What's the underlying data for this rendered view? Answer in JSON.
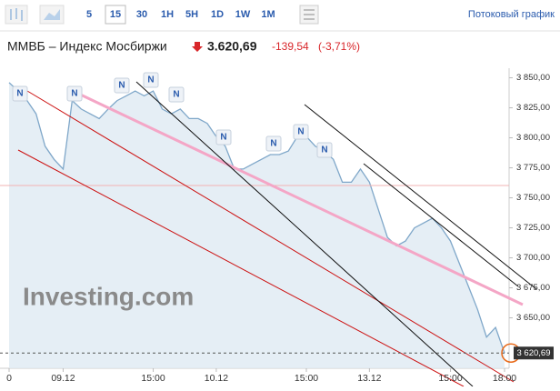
{
  "toolbar": {
    "periods": [
      "5",
      "15",
      "30",
      "1H",
      "5H",
      "1D",
      "1W",
      "1M"
    ],
    "active": "15",
    "stream_link": "Потоковый график"
  },
  "header": {
    "name": "ММВБ – Индекс Мосбиржи",
    "price": "3.620,69",
    "change": "-139,54",
    "change_pct": "(-3,71%)"
  },
  "watermark": "Investing.com",
  "news": [
    "N",
    "N",
    "N",
    "N",
    "N",
    "N",
    "N",
    "N",
    "N"
  ],
  "chart_data": {
    "type": "line",
    "categories": [
      "0",
      null,
      null,
      null,
      null,
      null,
      "09.12",
      null,
      null,
      null,
      null,
      null,
      null,
      null,
      null,
      null,
      "15:00",
      null,
      null,
      null,
      null,
      null,
      null,
      "10.12",
      null,
      null,
      null,
      null,
      null,
      null,
      null,
      null,
      null,
      "15:00",
      null,
      null,
      null,
      null,
      null,
      null,
      "13.12",
      null,
      null,
      null,
      null,
      null,
      null,
      null,
      null,
      "15:00",
      null,
      null,
      null,
      null,
      null,
      "18:00"
    ],
    "series": [
      {
        "name": "ММВБ",
        "color": "#7fa7c9",
        "values": [
          3846,
          3839,
          3831,
          3820,
          3793,
          3782,
          3774,
          3831,
          3824,
          3820,
          3816,
          3824,
          3831,
          3835,
          3839,
          3835,
          3839,
          3824,
          3820,
          3824,
          3816,
          3816,
          3812,
          3801,
          3793,
          3774,
          3774,
          3778,
          3782,
          3786,
          3786,
          3789,
          3801,
          3801,
          3793,
          3789,
          3782,
          3763,
          3763,
          3774,
          3763,
          3740,
          3717,
          3710,
          3714,
          3725,
          3729,
          3733,
          3725,
          3714,
          3695,
          3676,
          3657,
          3634,
          3642,
          3620.69
        ]
      }
    ],
    "last_label": "3 620,69",
    "ylim": [
      3608,
      3858
    ],
    "yticks": [
      {
        "value": 3650,
        "label": "3 650,00"
      },
      {
        "value": 3675,
        "label": "3 675,00"
      },
      {
        "value": 3700,
        "label": "3 700,00"
      },
      {
        "value": 3725,
        "label": "3 725,00"
      },
      {
        "value": 3750,
        "label": "3 750,00"
      },
      {
        "value": 3775,
        "label": "3 775,00"
      },
      {
        "value": 3800,
        "label": "3 800,00"
      },
      {
        "value": 3825,
        "label": "3 825,00"
      },
      {
        "value": 3850,
        "label": "3 850,00"
      }
    ]
  }
}
